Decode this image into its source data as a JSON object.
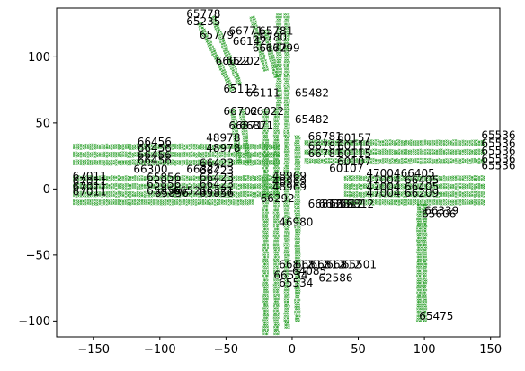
{
  "chart_data": {
    "type": "scatter",
    "title": "",
    "xlabel": "",
    "ylabel": "",
    "xlim": [
      -178,
      157
    ],
    "ylim": [
      -112,
      137
    ],
    "xticks": [
      -150,
      -100,
      -50,
      0,
      50,
      100,
      150
    ],
    "xtick_labels": [
      "−150",
      "−100",
      "−50",
      "0",
      "50",
      "100",
      "150"
    ],
    "yticks": [
      -100,
      -50,
      0,
      50,
      100
    ],
    "ytick_labels": [
      "−100",
      "−50",
      "0",
      "50",
      "100"
    ],
    "grid": false,
    "legend": false,
    "colors": {
      "points": "#2ca02c",
      "text": "#000000",
      "axes": "#000000"
    },
    "marker": "x",
    "series": [
      {
        "lanes": [
          {
            "from": [
              -165,
              32
            ],
            "to": [
              -10,
              32
            ],
            "width": 6
          },
          {
            "from": [
              -165,
              26
            ],
            "to": [
              -10,
              26
            ],
            "width": 6
          },
          {
            "from": [
              -165,
              20
            ],
            "to": [
              -10,
              20
            ],
            "width": 6
          },
          {
            "from": [
              -165,
              8
            ],
            "to": [
              -10,
              8
            ],
            "width": 6
          },
          {
            "from": [
              -165,
              2
            ],
            "to": [
              -10,
              2
            ],
            "width": 6
          },
          {
            "from": [
              -165,
              -4
            ],
            "to": [
              -10,
              -4
            ],
            "width": 6
          },
          {
            "from": [
              -165,
              -10
            ],
            "to": [
              -30,
              -10
            ],
            "width": 6
          },
          {
            "from": [
              10,
              35
            ],
            "to": [
              145,
              35
            ],
            "width": 6
          },
          {
            "from": [
              10,
              28
            ],
            "to": [
              145,
              28
            ],
            "width": 6
          },
          {
            "from": [
              10,
              21
            ],
            "to": [
              145,
              21
            ],
            "width": 6
          },
          {
            "from": [
              40,
              8
            ],
            "to": [
              145,
              8
            ],
            "width": 6
          },
          {
            "from": [
              40,
              2
            ],
            "to": [
              145,
              2
            ],
            "width": 6
          },
          {
            "from": [
              40,
              -4
            ],
            "to": [
              145,
              -4
            ],
            "width": 6
          },
          {
            "from": [
              40,
              -10
            ],
            "to": [
              145,
              -10
            ],
            "width": 6
          },
          {
            "from": [
              -10,
              132
            ],
            "to": [
              -10,
              60
            ],
            "width": 6
          },
          {
            "from": [
              -4,
              132
            ],
            "to": [
              -4,
              60
            ],
            "width": 6
          },
          {
            "from": [
              -45,
              60
            ],
            "to": [
              -40,
              20
            ],
            "width": 6
          },
          {
            "from": [
              -38,
              60
            ],
            "to": [
              -33,
              20
            ],
            "width": 6
          },
          {
            "from": [
              -20,
              60
            ],
            "to": [
              -20,
              -110
            ],
            "width": 6
          },
          {
            "from": [
              -12,
              60
            ],
            "to": [
              -12,
              -110
            ],
            "width": 6
          },
          {
            "from": [
              -4,
              60
            ],
            "to": [
              -4,
              -105
            ],
            "width": 6
          },
          {
            "from": [
              4,
              40
            ],
            "to": [
              4,
              -100
            ],
            "width": 6
          },
          {
            "from": [
              -60,
              130
            ],
            "to": [
              -40,
              80
            ],
            "width": 6
          },
          {
            "from": [
              -70,
              125
            ],
            "to": [
              -45,
              75
            ],
            "width": 6
          },
          {
            "from": [
              -30,
              130
            ],
            "to": [
              -20,
              90
            ],
            "width": 6
          },
          {
            "from": [
              -20,
              120
            ],
            "to": [
              -12,
              85
            ],
            "width": 6
          },
          {
            "from": [
              96,
              -12
            ],
            "to": [
              96,
              -100
            ],
            "width": 5
          },
          {
            "from": [
              100,
              -12
            ],
            "to": [
              100,
              -100
            ],
            "width": 5
          }
        ]
      }
    ],
    "annotations": [
      {
        "text": "65778",
        "x": -80,
        "y": 130
      },
      {
        "text": "65235",
        "x": -80,
        "y": 124
      },
      {
        "text": "66771",
        "x": -48,
        "y": 117
      },
      {
        "text": "65781",
        "x": -25,
        "y": 117
      },
      {
        "text": "65779",
        "x": -70,
        "y": 114
      },
      {
        "text": "66780",
        "x": -30,
        "y": 112
      },
      {
        "text": "66142",
        "x": -45,
        "y": 109
      },
      {
        "text": "66799",
        "x": -20,
        "y": 104
      },
      {
        "text": "66172",
        "x": -30,
        "y": 104
      },
      {
        "text": "66022",
        "x": -58,
        "y": 94
      },
      {
        "text": "66202",
        "x": -50,
        "y": 94
      },
      {
        "text": "65482",
        "x": 2,
        "y": 70
      },
      {
        "text": "66111",
        "x": -35,
        "y": 70
      },
      {
        "text": "65112",
        "x": -52,
        "y": 73
      },
      {
        "text": "66022",
        "x": -32,
        "y": 56
      },
      {
        "text": "66702",
        "x": -52,
        "y": 56
      },
      {
        "text": "65482",
        "x": 2,
        "y": 50
      },
      {
        "text": "66871",
        "x": -40,
        "y": 45
      },
      {
        "text": "66871",
        "x": -48,
        "y": 45
      },
      {
        "text": "66456",
        "x": -117,
        "y": 33
      },
      {
        "text": "66456",
        "x": -117,
        "y": 28
      },
      {
        "text": "66456",
        "x": -117,
        "y": 23
      },
      {
        "text": "66456",
        "x": -117,
        "y": 19
      },
      {
        "text": "48978",
        "x": -65,
        "y": 36
      },
      {
        "text": "48978",
        "x": -65,
        "y": 28
      },
      {
        "text": "66781",
        "x": 12,
        "y": 37
      },
      {
        "text": "66781",
        "x": 12,
        "y": 30
      },
      {
        "text": "66781",
        "x": 12,
        "y": 24
      },
      {
        "text": "60157",
        "x": 34,
        "y": 36
      },
      {
        "text": "60115",
        "x": 34,
        "y": 30
      },
      {
        "text": "60115",
        "x": 34,
        "y": 24
      },
      {
        "text": "60107",
        "x": 34,
        "y": 18
      },
      {
        "text": "60107",
        "x": 28,
        "y": 13
      },
      {
        "text": "65536",
        "x": 143,
        "y": 38
      },
      {
        "text": "65536",
        "x": 143,
        "y": 32
      },
      {
        "text": "65536",
        "x": 143,
        "y": 26
      },
      {
        "text": "65536",
        "x": 143,
        "y": 20
      },
      {
        "text": "65536",
        "x": 143,
        "y": 15
      },
      {
        "text": "66300",
        "x": -120,
        "y": 12
      },
      {
        "text": "66322",
        "x": -80,
        "y": 12
      },
      {
        "text": "66423",
        "x": -70,
        "y": 17
      },
      {
        "text": "66423",
        "x": -70,
        "y": 11
      },
      {
        "text": "66423",
        "x": -70,
        "y": 6
      },
      {
        "text": "66423",
        "x": -70,
        "y": 1
      },
      {
        "text": "66321",
        "x": -70,
        "y": -4
      },
      {
        "text": "65856",
        "x": -70,
        "y": -6
      },
      {
        "text": "65856",
        "x": -104,
        "y": -6
      },
      {
        "text": "65856",
        "x": -110,
        "y": 6
      },
      {
        "text": "65856",
        "x": -110,
        "y": 1
      },
      {
        "text": "65856",
        "x": -110,
        "y": -4
      },
      {
        "text": "66521",
        "x": -90,
        "y": -4
      },
      {
        "text": "67011",
        "x": -166,
        "y": 7
      },
      {
        "text": "67011",
        "x": -166,
        "y": 3
      },
      {
        "text": "67011",
        "x": -166,
        "y": -1
      },
      {
        "text": "67011",
        "x": -166,
        "y": -5
      },
      {
        "text": "48969",
        "x": -15,
        "y": 7
      },
      {
        "text": "48969",
        "x": -15,
        "y": 3
      },
      {
        "text": "48969",
        "x": -15,
        "y": -1
      },
      {
        "text": "47004",
        "x": 56,
        "y": 9
      },
      {
        "text": "47004",
        "x": 56,
        "y": 4
      },
      {
        "text": "47004",
        "x": 56,
        "y": -1
      },
      {
        "text": "47004",
        "x": 56,
        "y": -6
      },
      {
        "text": "66405",
        "x": 82,
        "y": 9
      },
      {
        "text": "66405",
        "x": 85,
        "y": 4
      },
      {
        "text": "66405",
        "x": 85,
        "y": -1
      },
      {
        "text": "66209",
        "x": 85,
        "y": -6
      },
      {
        "text": "66292",
        "x": -24,
        "y": -10
      },
      {
        "text": "66812",
        "x": 12,
        "y": -14
      },
      {
        "text": "66812",
        "x": 20,
        "y": -14
      },
      {
        "text": "66812",
        "x": 28,
        "y": -14
      },
      {
        "text": "66812",
        "x": 36,
        "y": -14
      },
      {
        "text": "66339",
        "x": 100,
        "y": -19
      },
      {
        "text": "65606",
        "x": 98,
        "y": -22
      },
      {
        "text": "46980",
        "x": -10,
        "y": -28
      },
      {
        "text": "66812",
        "x": -10,
        "y": -60
      },
      {
        "text": "66812",
        "x": 2,
        "y": -60
      },
      {
        "text": "66812",
        "x": 14,
        "y": -60
      },
      {
        "text": "66812",
        "x": 26,
        "y": -60
      },
      {
        "text": "65501",
        "x": 38,
        "y": -60
      },
      {
        "text": "64085",
        "x": 0,
        "y": -65
      },
      {
        "text": "62586",
        "x": 20,
        "y": -70
      },
      {
        "text": "66534",
        "x": -14,
        "y": -68
      },
      {
        "text": "65534",
        "x": -10,
        "y": -74
      },
      {
        "text": "65475",
        "x": 96,
        "y": -99
      }
    ]
  }
}
